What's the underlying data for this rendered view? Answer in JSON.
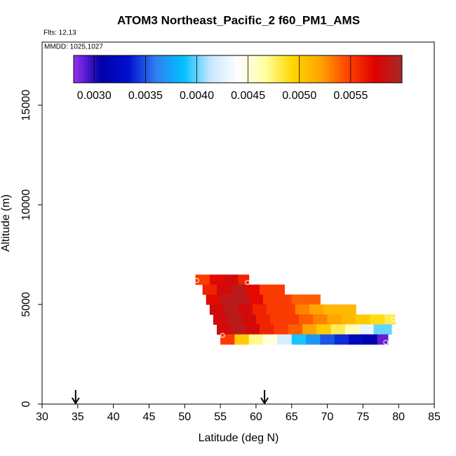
{
  "chart_data": {
    "type": "curtain",
    "title": "ATOM3 Northeast_Pacific_2 f60_PM1_AMS",
    "subtitle": "Flts: 12,13",
    "annotation": "MMDD: 1025,1027",
    "x_label": "Latitude (deg N)",
    "y_label": "Altitude (m)",
    "xlim": [
      30,
      85
    ],
    "xticks": [
      30,
      35,
      40,
      45,
      50,
      55,
      60,
      65,
      70,
      75,
      80,
      85
    ],
    "ylim": [
      0,
      18170
    ],
    "yticks": [
      0,
      5000,
      10000,
      15000
    ],
    "clim": [
      0.0028,
      0.006
    ],
    "cticks": [
      {
        "value": 0.003,
        "label": "0.0030"
      },
      {
        "value": 0.0035,
        "label": "0.0035"
      },
      {
        "value": 0.004,
        "label": "0.0040"
      },
      {
        "value": 0.0045,
        "label": "0.0045"
      },
      {
        "value": 0.005,
        "label": "0.0050"
      },
      {
        "value": 0.0055,
        "label": "0.0055"
      }
    ],
    "colormap": [
      "#9a30f0",
      "#0000a8",
      "#0010d0",
      "#2f7ff0",
      "#00bfff",
      "#c8e8ff",
      "#ffffff",
      "#ffffa0",
      "#ffd700",
      "#ffa500",
      "#ff4500",
      "#e00000",
      "#a52a2a"
    ],
    "rows": [
      {
        "alt": [
          6000,
          6500
        ],
        "lat_edges": [
          51.5,
          53.5,
          55.5,
          57.5,
          59
        ],
        "values": [
          0.0055,
          0.0057,
          0.0058,
          0.0056
        ]
      },
      {
        "alt": [
          5500,
          6000
        ],
        "lat_edges": [
          52.5,
          54.5,
          56.5,
          58.5,
          60.5,
          62.5,
          64
        ],
        "values": [
          0.0056,
          0.0058,
          0.0059,
          0.0057,
          0.0055,
          0.0055
        ]
      },
      {
        "alt": [
          5000,
          5500
        ],
        "lat_edges": [
          53,
          55,
          57,
          59,
          61,
          63,
          65,
          67,
          69
        ],
        "values": [
          0.0057,
          0.0059,
          0.0059,
          0.0057,
          0.0055,
          0.0055,
          0.0054,
          0.0054
        ]
      },
      {
        "alt": [
          4500,
          5000
        ],
        "lat_edges": [
          53.5,
          55.5,
          57.5,
          59.5,
          61.5,
          63.5,
          65.5,
          67.5,
          69.5,
          71.5,
          74
        ],
        "values": [
          0.0058,
          0.0059,
          0.0058,
          0.0056,
          0.0055,
          0.0055,
          0.0053,
          0.0052,
          0.0051,
          0.0051
        ]
      },
      {
        "alt": [
          4000,
          4500
        ],
        "lat_edges": [
          54,
          56,
          58,
          60,
          62,
          64,
          66,
          68,
          70,
          72,
          74,
          76,
          78,
          79.5
        ],
        "values": [
          0.0058,
          0.0059,
          0.0058,
          0.0056,
          0.0055,
          0.0055,
          0.0054,
          0.0053,
          0.0052,
          0.0051,
          0.005,
          0.0049,
          0.0048
        ]
      },
      {
        "alt": [
          3500,
          4000
        ],
        "lat_edges": [
          54.5,
          56.5,
          58.5,
          60.5,
          62.5,
          64.5,
          66.5,
          68.5,
          70.5,
          72.5,
          74.5,
          76.5,
          79
        ],
        "values": [
          0.0058,
          0.0059,
          0.0058,
          0.0056,
          0.0055,
          0.0054,
          0.0052,
          0.005,
          0.0048,
          0.0046,
          0.0043,
          0.004
        ]
      },
      {
        "alt": [
          3000,
          3500
        ],
        "lat_edges": [
          55,
          57,
          59,
          61,
          63,
          65,
          67,
          69,
          71,
          73,
          75,
          77,
          78.5
        ],
        "values": [
          0.0055,
          0.005,
          0.0047,
          0.0045,
          0.0042,
          0.0039,
          0.0037,
          0.0035,
          0.0034,
          0.0032,
          0.0031,
          0.0029
        ]
      }
    ],
    "markers": {
      "x": [
        51.7,
        58.8,
        55.3,
        78.2,
        79.3
      ],
      "y": [
        6200,
        6100,
        3450,
        3100,
        4250
      ]
    },
    "arrows_x": [
      34.7,
      61.2
    ]
  }
}
